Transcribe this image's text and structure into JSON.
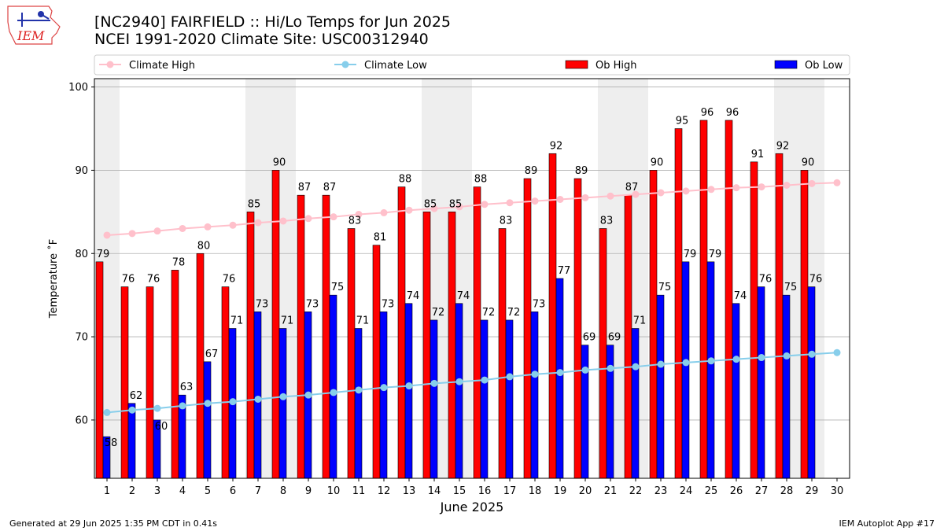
{
  "header": {
    "title_line1": "[NC2940] FAIRFIELD :: Hi/Lo Temps for Jun 2025",
    "title_line2": "NCEI 1991-2020 Climate Site: USC00312940",
    "logo_text": "IEM"
  },
  "footer": {
    "left": "Generated at 29 Jun 2025 1:35 PM CDT in 0.41s",
    "right": "IEM Autoplot App #17"
  },
  "colors": {
    "ob_high": "#ff0000",
    "ob_low": "#0000ff",
    "climate_high": "#ffc0cb",
    "climate_low": "#87ceeb",
    "weekend_band": "#eeeeee",
    "grid": "#b0b0b0"
  },
  "chart_data": {
    "type": "bar",
    "xlabel": "June 2025",
    "ylabel": "Temperature ˚F",
    "ylim": [
      53,
      101
    ],
    "yticks": [
      60,
      70,
      80,
      90,
      100
    ],
    "grid": "horizontal",
    "legend_position": "top",
    "categories": [
      "1",
      "2",
      "3",
      "4",
      "5",
      "6",
      "7",
      "8",
      "9",
      "10",
      "11",
      "12",
      "13",
      "14",
      "15",
      "16",
      "17",
      "18",
      "19",
      "20",
      "21",
      "22",
      "23",
      "24",
      "25",
      "26",
      "27",
      "28",
      "29",
      "30"
    ],
    "weekend_days": [
      1,
      7,
      8,
      14,
      15,
      21,
      22,
      28,
      29
    ],
    "series": [
      {
        "name": "Climate High",
        "kind": "line",
        "values": [
          82.2,
          82.4,
          82.7,
          83.0,
          83.2,
          83.4,
          83.7,
          83.9,
          84.2,
          84.4,
          84.7,
          84.9,
          85.2,
          85.4,
          85.6,
          85.9,
          86.1,
          86.3,
          86.5,
          86.7,
          86.9,
          87.1,
          87.3,
          87.5,
          87.7,
          87.9,
          88.0,
          88.2,
          88.4,
          88.5
        ]
      },
      {
        "name": "Climate Low",
        "kind": "line",
        "values": [
          60.9,
          61.2,
          61.4,
          61.7,
          62.0,
          62.2,
          62.5,
          62.8,
          63.0,
          63.3,
          63.6,
          63.9,
          64.1,
          64.4,
          64.6,
          64.8,
          65.2,
          65.5,
          65.7,
          66.0,
          66.2,
          66.4,
          66.7,
          66.9,
          67.1,
          67.3,
          67.5,
          67.7,
          67.9,
          68.1
        ]
      },
      {
        "name": "Ob High",
        "kind": "bar",
        "values": [
          79,
          76,
          76,
          78,
          80,
          76,
          85,
          90,
          87,
          87,
          83,
          81,
          88,
          85,
          85,
          88,
          83,
          89,
          92,
          89,
          83,
          87,
          90,
          95,
          96,
          96,
          91,
          92,
          90,
          null
        ]
      },
      {
        "name": "Ob Low",
        "kind": "bar",
        "values": [
          58,
          62,
          60,
          63,
          67,
          71,
          73,
          71,
          73,
          75,
          71,
          73,
          74,
          72,
          74,
          72,
          72,
          73,
          77,
          69,
          69,
          71,
          75,
          79,
          79,
          74,
          76,
          75,
          76,
          null
        ]
      }
    ]
  }
}
